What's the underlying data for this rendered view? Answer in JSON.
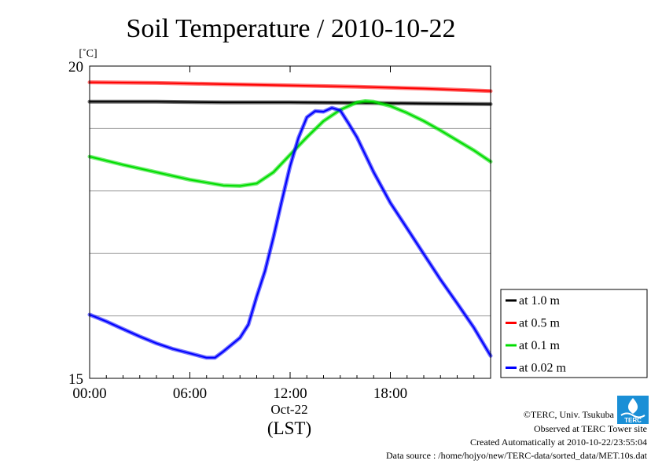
{
  "chart_data": {
    "type": "line",
    "title": "Soil Temperature / 2010-10-22",
    "ylabel": "[˚C]",
    "xlabel": "(LST)",
    "x_date_label": "Oct-22",
    "ylim": [
      15,
      20
    ],
    "y_ticks": [
      15,
      20
    ],
    "y_grid": [
      15,
      16,
      17,
      18,
      19,
      20
    ],
    "xlim_hours": [
      0,
      24
    ],
    "x_tick_hours": [
      0,
      6,
      12,
      18
    ],
    "x_tick_labels": [
      "00:00",
      "06:00",
      "12:00",
      "18:00"
    ],
    "grid": "horizontal",
    "legend_position": "right",
    "series": [
      {
        "name": "at 1.0 m",
        "color": "#000000",
        "x": [
          0,
          4,
          8,
          12,
          16,
          20,
          24
        ],
        "y": [
          19.43,
          19.43,
          19.42,
          19.42,
          19.41,
          19.4,
          19.39
        ]
      },
      {
        "name": "at 0.5 m",
        "color": "#ff0000",
        "x": [
          0,
          4,
          8,
          12,
          16,
          20,
          24
        ],
        "y": [
          19.74,
          19.73,
          19.71,
          19.69,
          19.67,
          19.64,
          19.6
        ]
      },
      {
        "name": "at 0.1 m",
        "color": "#00dd00",
        "x": [
          0,
          2,
          4,
          6,
          8,
          9,
          10,
          11,
          12,
          13,
          14,
          15,
          16,
          16.5,
          17,
          18,
          19,
          20,
          21,
          22,
          23,
          24
        ],
        "y": [
          18.55,
          18.42,
          18.3,
          18.18,
          18.09,
          18.08,
          18.12,
          18.3,
          18.58,
          18.86,
          19.12,
          19.3,
          19.42,
          19.44,
          19.43,
          19.36,
          19.25,
          19.12,
          18.97,
          18.81,
          18.65,
          18.47
        ]
      },
      {
        "name": "at 0.02 m",
        "color": "#0000ff",
        "x": [
          0,
          1,
          2,
          3,
          4,
          5,
          6,
          7,
          7.5,
          8,
          9,
          9.5,
          10,
          10.5,
          11,
          11.5,
          12,
          12.5,
          13,
          13.5,
          14,
          14.5,
          15,
          15.5,
          16,
          17,
          18,
          19,
          20,
          21,
          22,
          23,
          24
        ],
        "y": [
          16.02,
          15.91,
          15.79,
          15.67,
          15.56,
          15.47,
          15.4,
          15.33,
          15.33,
          15.43,
          15.65,
          15.86,
          16.31,
          16.72,
          17.26,
          17.84,
          18.4,
          18.85,
          19.18,
          19.28,
          19.27,
          19.33,
          19.29,
          19.08,
          18.86,
          18.3,
          17.81,
          17.4,
          16.99,
          16.58,
          16.2,
          15.81,
          15.36
        ]
      }
    ]
  },
  "footer": {
    "copyright": "©TERC, Univ. Tsukuba",
    "site": "Observed at TERC Tower site",
    "created": "Created Automatically at 2010-10-22/23:55:04",
    "source": "Data source : /home/hojyo/new/TERC-data/sorted_data/MET.10s.dat",
    "logo_text": "TERC"
  },
  "colors": {
    "grid": "#999999",
    "logo": "#1a8fd6"
  }
}
